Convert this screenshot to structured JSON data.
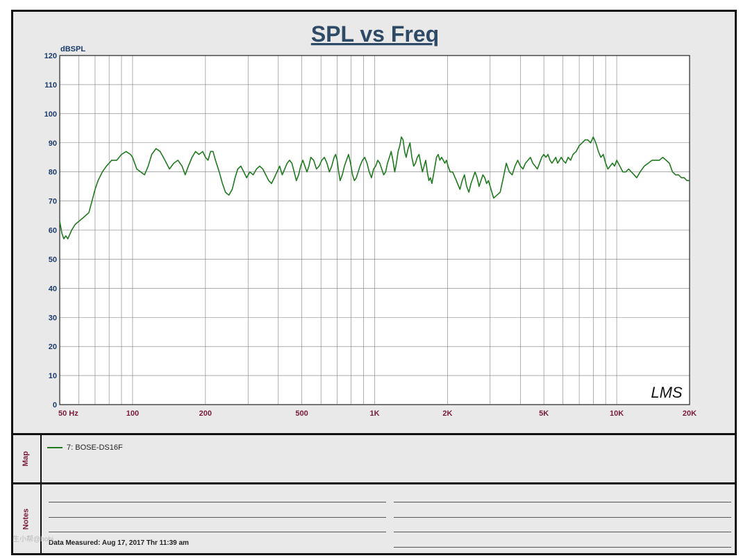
{
  "chart_data": {
    "type": "line",
    "title": "SPL vs Freq",
    "ylabel": "dBSPL",
    "xlabel": "",
    "x_scale": "log",
    "xlim": [
      50,
      20000
    ],
    "ylim": [
      0,
      120
    ],
    "grid": true,
    "yticks": [
      0,
      10,
      20,
      30,
      40,
      50,
      60,
      70,
      80,
      90,
      100,
      110,
      120
    ],
    "xtick_labels": [
      {
        "x": 50,
        "label": "50  Hz"
      },
      {
        "x": 100,
        "label": "100"
      },
      {
        "x": 200,
        "label": "200"
      },
      {
        "x": 500,
        "label": "500"
      },
      {
        "x": 1000,
        "label": "1K"
      },
      {
        "x": 2000,
        "label": "2K"
      },
      {
        "x": 5000,
        "label": "5K"
      },
      {
        "x": 10000,
        "label": "10K"
      },
      {
        "x": 20000,
        "label": "20K"
      }
    ],
    "series": [
      {
        "name": "7: BOSE-DS16F",
        "color": "#1f7a1f",
        "points": [
          [
            50,
            63
          ],
          [
            51,
            59
          ],
          [
            52,
            57
          ],
          [
            53,
            58
          ],
          [
            54,
            57
          ],
          [
            56,
            60
          ],
          [
            58,
            62
          ],
          [
            60,
            63
          ],
          [
            62,
            64
          ],
          [
            64,
            65
          ],
          [
            66,
            66
          ],
          [
            68,
            70
          ],
          [
            70,
            74
          ],
          [
            72,
            77
          ],
          [
            75,
            80
          ],
          [
            78,
            82
          ],
          [
            82,
            84
          ],
          [
            86,
            84
          ],
          [
            90,
            86
          ],
          [
            94,
            87
          ],
          [
            98,
            86
          ],
          [
            100,
            85
          ],
          [
            104,
            81
          ],
          [
            108,
            80
          ],
          [
            112,
            79
          ],
          [
            116,
            82
          ],
          [
            120,
            86
          ],
          [
            125,
            88
          ],
          [
            130,
            87
          ],
          [
            136,
            84
          ],
          [
            142,
            81
          ],
          [
            148,
            83
          ],
          [
            154,
            84
          ],
          [
            160,
            82
          ],
          [
            165,
            79
          ],
          [
            170,
            82
          ],
          [
            176,
            85
          ],
          [
            182,
            87
          ],
          [
            188,
            86
          ],
          [
            195,
            87
          ],
          [
            200,
            85
          ],
          [
            205,
            84
          ],
          [
            210,
            87
          ],
          [
            215,
            87
          ],
          [
            220,
            84
          ],
          [
            228,
            80
          ],
          [
            235,
            76
          ],
          [
            242,
            73
          ],
          [
            250,
            72
          ],
          [
            258,
            74
          ],
          [
            265,
            78
          ],
          [
            272,
            81
          ],
          [
            280,
            82
          ],
          [
            288,
            80
          ],
          [
            296,
            78
          ],
          [
            305,
            80
          ],
          [
            315,
            79
          ],
          [
            325,
            81
          ],
          [
            335,
            82
          ],
          [
            345,
            81
          ],
          [
            355,
            79
          ],
          [
            365,
            77
          ],
          [
            375,
            76
          ],
          [
            385,
            78
          ],
          [
            395,
            80
          ],
          [
            405,
            82
          ],
          [
            415,
            79
          ],
          [
            425,
            81
          ],
          [
            435,
            83
          ],
          [
            445,
            84
          ],
          [
            455,
            83
          ],
          [
            465,
            80
          ],
          [
            475,
            77
          ],
          [
            485,
            79
          ],
          [
            495,
            82
          ],
          [
            505,
            84
          ],
          [
            515,
            82
          ],
          [
            525,
            80
          ],
          [
            535,
            82
          ],
          [
            545,
            85
          ],
          [
            560,
            84
          ],
          [
            575,
            81
          ],
          [
            590,
            82
          ],
          [
            605,
            84
          ],
          [
            620,
            85
          ],
          [
            635,
            83
          ],
          [
            650,
            80
          ],
          [
            665,
            82
          ],
          [
            680,
            85
          ],
          [
            690,
            86
          ],
          [
            700,
            84
          ],
          [
            710,
            80
          ],
          [
            720,
            77
          ],
          [
            735,
            79
          ],
          [
            750,
            82
          ],
          [
            765,
            84
          ],
          [
            780,
            86
          ],
          [
            795,
            83
          ],
          [
            810,
            79
          ],
          [
            825,
            77
          ],
          [
            840,
            78
          ],
          [
            855,
            80
          ],
          [
            870,
            82
          ],
          [
            890,
            84
          ],
          [
            910,
            85
          ],
          [
            930,
            83
          ],
          [
            950,
            80
          ],
          [
            970,
            78
          ],
          [
            990,
            81
          ],
          [
            1010,
            82
          ],
          [
            1030,
            84
          ],
          [
            1050,
            83
          ],
          [
            1070,
            81
          ],
          [
            1090,
            79
          ],
          [
            1110,
            80
          ],
          [
            1130,
            83
          ],
          [
            1150,
            85
          ],
          [
            1170,
            87
          ],
          [
            1190,
            84
          ],
          [
            1210,
            80
          ],
          [
            1230,
            83
          ],
          [
            1250,
            87
          ],
          [
            1270,
            89
          ],
          [
            1290,
            92
          ],
          [
            1310,
            91
          ],
          [
            1330,
            87
          ],
          [
            1350,
            85
          ],
          [
            1375,
            88
          ],
          [
            1400,
            90
          ],
          [
            1425,
            85
          ],
          [
            1450,
            82
          ],
          [
            1475,
            83
          ],
          [
            1500,
            85
          ],
          [
            1525,
            86
          ],
          [
            1550,
            83
          ],
          [
            1575,
            80
          ],
          [
            1600,
            82
          ],
          [
            1625,
            84
          ],
          [
            1650,
            80
          ],
          [
            1675,
            77
          ],
          [
            1700,
            78
          ],
          [
            1725,
            76
          ],
          [
            1750,
            79
          ],
          [
            1775,
            82
          ],
          [
            1800,
            85
          ],
          [
            1830,
            86
          ],
          [
            1860,
            84
          ],
          [
            1890,
            85
          ],
          [
            1920,
            84
          ],
          [
            1950,
            83
          ],
          [
            1980,
            84
          ],
          [
            2010,
            82
          ],
          [
            2050,
            80
          ],
          [
            2100,
            80
          ],
          [
            2150,
            78
          ],
          [
            2200,
            76
          ],
          [
            2250,
            74
          ],
          [
            2300,
            77
          ],
          [
            2350,
            79
          ],
          [
            2400,
            75
          ],
          [
            2450,
            73
          ],
          [
            2500,
            76
          ],
          [
            2550,
            78
          ],
          [
            2600,
            80
          ],
          [
            2650,
            78
          ],
          [
            2700,
            75
          ],
          [
            2750,
            77
          ],
          [
            2800,
            79
          ],
          [
            2850,
            78
          ],
          [
            2900,
            76
          ],
          [
            2950,
            77
          ],
          [
            3000,
            75
          ],
          [
            3050,
            73
          ],
          [
            3100,
            71
          ],
          [
            3200,
            72
          ],
          [
            3300,
            73
          ],
          [
            3400,
            78
          ],
          [
            3500,
            83
          ],
          [
            3600,
            80
          ],
          [
            3700,
            79
          ],
          [
            3800,
            82
          ],
          [
            3900,
            84
          ],
          [
            4000,
            82
          ],
          [
            4100,
            81
          ],
          [
            4200,
            83
          ],
          [
            4300,
            84
          ],
          [
            4400,
            85
          ],
          [
            4500,
            83
          ],
          [
            4600,
            82
          ],
          [
            4700,
            81
          ],
          [
            4800,
            83
          ],
          [
            4900,
            85
          ],
          [
            5000,
            86
          ],
          [
            5100,
            85
          ],
          [
            5200,
            86
          ],
          [
            5300,
            84
          ],
          [
            5400,
            83
          ],
          [
            5500,
            84
          ],
          [
            5600,
            85
          ],
          [
            5700,
            83
          ],
          [
            5800,
            84
          ],
          [
            5900,
            85
          ],
          [
            6000,
            84
          ],
          [
            6150,
            83
          ],
          [
            6300,
            85
          ],
          [
            6450,
            84
          ],
          [
            6600,
            86
          ],
          [
            6800,
            87
          ],
          [
            7000,
            89
          ],
          [
            7200,
            90
          ],
          [
            7400,
            91
          ],
          [
            7600,
            91
          ],
          [
            7800,
            90
          ],
          [
            8000,
            92
          ],
          [
            8200,
            90
          ],
          [
            8400,
            87
          ],
          [
            8600,
            85
          ],
          [
            8800,
            86
          ],
          [
            9000,
            83
          ],
          [
            9200,
            81
          ],
          [
            9400,
            82
          ],
          [
            9600,
            83
          ],
          [
            9800,
            82
          ],
          [
            10000,
            84
          ],
          [
            10300,
            82
          ],
          [
            10600,
            80
          ],
          [
            10900,
            80
          ],
          [
            11200,
            81
          ],
          [
            11500,
            80
          ],
          [
            11800,
            79
          ],
          [
            12100,
            78
          ],
          [
            12500,
            80
          ],
          [
            13000,
            82
          ],
          [
            13500,
            83
          ],
          [
            14000,
            84
          ],
          [
            14500,
            84
          ],
          [
            15000,
            84
          ],
          [
            15500,
            85
          ],
          [
            16000,
            84
          ],
          [
            16500,
            83
          ],
          [
            17000,
            80
          ],
          [
            17500,
            79
          ],
          [
            18000,
            79
          ],
          [
            18500,
            78
          ],
          [
            19000,
            78
          ],
          [
            19500,
            77
          ],
          [
            20000,
            77
          ]
        ]
      }
    ]
  },
  "logo_text": "LMS",
  "map_section": {
    "label": "Map",
    "legend": [
      {
        "label": "7: BOSE-DS16F",
        "color": "#1f7a1f"
      }
    ]
  },
  "notes_section": {
    "label": "Notes",
    "measured_text": "Data Measured: Aug 17, 2017  Thr 11:39 am"
  },
  "watermark_text": "生小帮@hobi",
  "colors": {
    "title": "#2e4a66",
    "axis_label": "#1a3a6a",
    "x_tick_label": "#7a1a3a",
    "grid": "#7a7a7a",
    "plot_bg": "#ffffff",
    "panel_bg": "#e9e9e9"
  }
}
